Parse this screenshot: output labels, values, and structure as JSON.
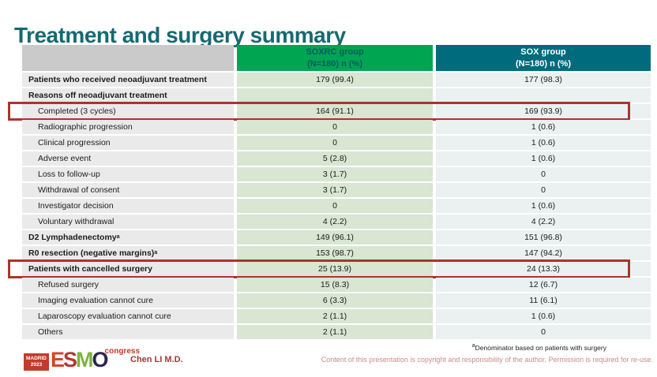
{
  "slide": {
    "title": "Treatment and surgery summary"
  },
  "table": {
    "header": {
      "group1_name": "SOXRC group",
      "group1_sub": "(N=180)  n (%)",
      "group2_name": "SOX group",
      "group2_sub": "(N=180)  n (%)"
    },
    "rows": [
      {
        "label": "Patients who received neoadjuvant treatment",
        "bold": true,
        "indent": false,
        "highlight": false,
        "soxrc": "179 (99.4)",
        "sox": "177 (98.3)"
      },
      {
        "label": "Reasons off neoadjuvant treatment",
        "bold": true,
        "indent": false,
        "highlight": false,
        "soxrc": "",
        "sox": ""
      },
      {
        "label": "Completed (3 cycles)",
        "bold": false,
        "indent": true,
        "highlight": true,
        "soxrc": "164 (91.1)",
        "sox": "169 (93.9)"
      },
      {
        "label": "Radiographic progression",
        "bold": false,
        "indent": true,
        "highlight": false,
        "soxrc": "0",
        "sox": "1 (0.6)"
      },
      {
        "label": "Clinical progression",
        "bold": false,
        "indent": true,
        "highlight": false,
        "soxrc": "0",
        "sox": "1 (0.6)"
      },
      {
        "label": "Adverse event",
        "bold": false,
        "indent": true,
        "highlight": false,
        "soxrc": "5 (2.8)",
        "sox": "1 (0.6)"
      },
      {
        "label": "Loss to follow-up",
        "bold": false,
        "indent": true,
        "highlight": false,
        "soxrc": "3 (1.7)",
        "sox": "0"
      },
      {
        "label": "Withdrawal of consent",
        "bold": false,
        "indent": true,
        "highlight": false,
        "soxrc": "3 (1.7)",
        "sox": "0"
      },
      {
        "label": "Investigator decision",
        "bold": false,
        "indent": true,
        "highlight": false,
        "soxrc": "0",
        "sox": "1 (0.6)"
      },
      {
        "label": "Voluntary withdrawal",
        "bold": false,
        "indent": true,
        "highlight": false,
        "soxrc": "4 (2.2)",
        "sox": "4 (2.2)"
      },
      {
        "label": "D2 Lymphadenectomy",
        "sup": "a",
        "bold": true,
        "indent": false,
        "highlight": false,
        "soxrc": "149 (96.1)",
        "sox": "151 (96.8)"
      },
      {
        "label": "R0 resection (negative margins)",
        "sup": "a",
        "bold": true,
        "indent": false,
        "highlight": false,
        "soxrc": "153 (98.7)",
        "sox": "147 (94.2)"
      },
      {
        "label": "Patients with cancelled surgery",
        "bold": true,
        "indent": false,
        "highlight": true,
        "soxrc": "25 (13.9)",
        "sox": "24 (13.3)"
      },
      {
        "label": "Refused surgery",
        "bold": false,
        "indent": true,
        "highlight": false,
        "soxrc": "15 (8.3)",
        "sox": "12 (6.7)"
      },
      {
        "label": "Imaging evaluation cannot cure",
        "bold": false,
        "indent": true,
        "highlight": false,
        "soxrc": "6 (3.3)",
        "sox": "11 (6.1)"
      },
      {
        "label": "Laparoscopy evaluation cannot cure",
        "bold": false,
        "indent": true,
        "highlight": false,
        "soxrc": "2 (1.1)",
        "sox": "1 (0.6)"
      },
      {
        "label": "Others",
        "bold": false,
        "indent": true,
        "highlight": false,
        "soxrc": "2 (1.1)",
        "sox": "0"
      }
    ]
  },
  "footer": {
    "logo": {
      "badge_line1": "MADRID",
      "badge_line2": "2023",
      "letters": [
        "E",
        "S",
        "M",
        "O"
      ],
      "congress": "congress"
    },
    "author": "Chen LI M.D.",
    "footnote_sup": "a",
    "footnote": "Denominator based on patients with surgery",
    "copyright": "Content of this presentation is copyright and responsibility of the author.  Permission is required for re-use."
  },
  "colors": {
    "title": "#186970",
    "soxrc_header_bg": "#00A551",
    "sox_header_bg": "#006B7C",
    "label_cell_bg": "#EAEAEA",
    "soxrc_cell_bg": "#D8E6D2",
    "sox_cell_bg": "#EAF1F0",
    "highlight_border": "#A8362C",
    "copyright_text": "#CC8B88"
  }
}
